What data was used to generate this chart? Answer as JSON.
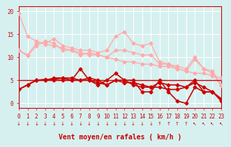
{
  "background_color": "#d6f0f0",
  "grid_color": "#ffffff",
  "xlim": [
    0,
    23
  ],
  "ylim": [
    -1,
    21
  ],
  "yticks": [
    0,
    5,
    10,
    15,
    20
  ],
  "xticks": [
    0,
    1,
    2,
    3,
    4,
    5,
    6,
    7,
    8,
    9,
    10,
    11,
    12,
    13,
    14,
    15,
    16,
    17,
    18,
    19,
    20,
    21,
    22,
    23
  ],
  "xlabel": "Vent moyen/en rafales ( km/h )",
  "xlabel_color": "#cc0000",
  "xlabel_fontsize": 7,
  "tick_color": "#cc0000",
  "tick_fontsize": 5.5,
  "axis_color": "#cc0000",
  "series": [
    {
      "x": [
        0,
        1,
        2,
        3,
        4,
        5,
        6,
        7,
        8,
        9,
        10,
        11,
        12,
        13,
        14,
        15,
        16,
        17,
        18,
        19,
        20,
        21,
        22,
        23
      ],
      "y": [
        11.5,
        10.5,
        13.0,
        13.0,
        14.0,
        12.5,
        12.0,
        11.5,
        11.5,
        11.0,
        11.5,
        14.5,
        15.5,
        13.0,
        12.5,
        13.0,
        9.0,
        8.5,
        8.0,
        7.5,
        10.0,
        7.5,
        7.0,
        4.0
      ],
      "color": "#ffaaaa",
      "linewidth": 1.0,
      "marker": "D",
      "markersize": 2.5
    },
    {
      "x": [
        0,
        1,
        2,
        3,
        4,
        5,
        6,
        7,
        8,
        9,
        10,
        11,
        12,
        13,
        14,
        15,
        16,
        17,
        18,
        19,
        20,
        21,
        22,
        23
      ],
      "y": [
        11.5,
        10.3,
        12.5,
        13.5,
        13.0,
        11.5,
        11.5,
        10.5,
        11.0,
        10.5,
        10.0,
        11.5,
        11.5,
        11.0,
        10.5,
        10.5,
        8.5,
        8.5,
        7.5,
        7.0,
        9.5,
        7.5,
        6.5,
        3.8
      ],
      "color": "#ffaaaa",
      "linewidth": 1.0,
      "marker": "D",
      "markersize": 2.5
    },
    {
      "x": [
        0,
        1,
        2,
        3,
        4,
        5,
        6,
        7,
        8,
        9,
        10,
        11,
        12,
        13,
        14,
        15,
        16,
        17,
        18,
        19,
        20,
        21,
        22,
        23
      ],
      "y": [
        19.5,
        14.5,
        13.5,
        12.8,
        12.5,
        12.0,
        11.5,
        11.0,
        10.5,
        10.5,
        10.0,
        9.5,
        9.0,
        9.0,
        8.5,
        8.5,
        8.0,
        8.0,
        7.5,
        7.0,
        6.5,
        6.5,
        6.0,
        5.5
      ],
      "color": "#ffaaaa",
      "linewidth": 1.0,
      "marker": "D",
      "markersize": 2.5
    },
    {
      "x": [
        0,
        1,
        2,
        3,
        4,
        5,
        6,
        7,
        8,
        9,
        10,
        11,
        12,
        13,
        14,
        15,
        16,
        17,
        18,
        19,
        20,
        21,
        22,
        23
      ],
      "y": [
        3.0,
        4.0,
        5.0,
        5.0,
        5.0,
        5.0,
        5.0,
        7.5,
        5.0,
        4.0,
        5.0,
        6.5,
        5.0,
        5.0,
        2.5,
        2.5,
        5.0,
        2.5,
        0.5,
        0.0,
        3.5,
        2.5,
        2.5,
        0.5
      ],
      "color": "#cc0000",
      "linewidth": 1.2,
      "marker": "D",
      "markersize": 2.5
    },
    {
      "x": [
        0,
        1,
        2,
        3,
        4,
        5,
        6,
        7,
        8,
        9,
        10,
        11,
        12,
        13,
        14,
        15,
        16,
        17,
        18,
        19,
        20,
        21,
        22,
        23
      ],
      "y": [
        3.0,
        4.0,
        5.0,
        5.2,
        5.2,
        5.5,
        5.0,
        5.0,
        5.5,
        5.0,
        4.0,
        5.0,
        5.0,
        4.0,
        3.5,
        3.5,
        4.5,
        4.0,
        4.0,
        3.5,
        5.0,
        2.5,
        2.5,
        0.8
      ],
      "color": "#cc0000",
      "linewidth": 1.2,
      "marker": "D",
      "markersize": 2.5
    },
    {
      "x": [
        0,
        1,
        2,
        3,
        4,
        5,
        6,
        7,
        8,
        9,
        10,
        11,
        12,
        13,
        14,
        15,
        16,
        17,
        18,
        19,
        20,
        21,
        22,
        23
      ],
      "y": [
        3.0,
        4.0,
        5.0,
        5.0,
        5.5,
        5.5,
        5.5,
        5.0,
        5.0,
        4.5,
        4.0,
        5.0,
        4.5,
        4.5,
        4.0,
        3.5,
        3.5,
        3.0,
        3.0,
        3.5,
        4.5,
        3.5,
        2.5,
        1.0
      ],
      "color": "#cc0000",
      "linewidth": 1.2,
      "marker": "D",
      "markersize": 2.5
    },
    {
      "x": [
        0,
        1,
        2,
        3,
        4,
        5,
        6,
        7,
        8,
        9,
        10,
        11,
        12,
        13,
        14,
        15,
        16,
        17,
        18,
        19,
        20,
        21,
        22,
        23
      ],
      "y": [
        5.0,
        5.0,
        5.0,
        5.0,
        5.0,
        5.0,
        5.0,
        5.0,
        5.0,
        5.0,
        5.0,
        5.0,
        5.0,
        5.0,
        5.0,
        5.0,
        5.0,
        5.0,
        5.0,
        5.0,
        5.0,
        5.0,
        5.0,
        5.0
      ],
      "color": "#cc0000",
      "linewidth": 1.0,
      "marker": null,
      "markersize": 0
    }
  ],
  "wind_arrows_x": [
    0,
    1,
    2,
    3,
    4,
    5,
    6,
    7,
    8,
    9,
    10,
    11,
    12,
    13,
    14,
    15,
    16,
    17,
    18,
    19,
    20,
    21,
    22,
    23
  ],
  "wind_arrows_dir": [
    "down",
    "down",
    "down",
    "down",
    "down",
    "down",
    "down",
    "down",
    "down",
    "down",
    "down",
    "down",
    "down",
    "down",
    "down",
    "down",
    "up",
    "up",
    "up",
    "up",
    "up_left",
    "up_left",
    "up_left",
    "up_left"
  ]
}
